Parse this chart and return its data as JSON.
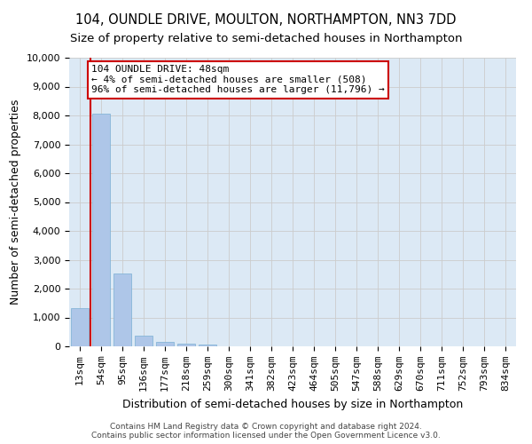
{
  "title": "104, OUNDLE DRIVE, MOULTON, NORTHAMPTON, NN3 7DD",
  "subtitle": "Size of property relative to semi-detached houses in Northampton",
  "xlabel": "Distribution of semi-detached houses by size in Northampton",
  "ylabel": "Number of semi-detached properties",
  "footer_line1": "Contains HM Land Registry data © Crown copyright and database right 2024.",
  "footer_line2": "Contains public sector information licensed under the Open Government Licence v3.0.",
  "annotation_title": "104 OUNDLE DRIVE: 48sqm",
  "annotation_line1": "← 4% of semi-detached houses are smaller (508)",
  "annotation_line2": "96% of semi-detached houses are larger (11,796) →",
  "bar_categories": [
    "13sqm",
    "54sqm",
    "95sqm",
    "136sqm",
    "177sqm",
    "218sqm",
    "259sqm",
    "300sqm",
    "341sqm",
    "382sqm",
    "423sqm",
    "464sqm",
    "505sqm",
    "547sqm",
    "588sqm",
    "629sqm",
    "670sqm",
    "711sqm",
    "752sqm",
    "793sqm",
    "834sqm"
  ],
  "bar_heights": [
    1330,
    8050,
    2530,
    380,
    140,
    85,
    55,
    0,
    0,
    0,
    0,
    0,
    0,
    0,
    0,
    0,
    0,
    0,
    0,
    0,
    0
  ],
  "bar_color": "#aec6e8",
  "bar_edge_color": "#7aafd4",
  "vline_color": "#cc0000",
  "annotation_box_edgecolor": "#cc0000",
  "ylim": [
    0,
    10000
  ],
  "yticks": [
    0,
    1000,
    2000,
    3000,
    4000,
    5000,
    6000,
    7000,
    8000,
    9000,
    10000
  ],
  "grid_color": "#cccccc",
  "background_color": "#dce9f5",
  "title_fontsize": 10.5,
  "subtitle_fontsize": 9.5,
  "ylabel_fontsize": 9,
  "xlabel_fontsize": 9,
  "tick_fontsize": 8,
  "annotation_fontsize": 8,
  "footer_fontsize": 6.5
}
